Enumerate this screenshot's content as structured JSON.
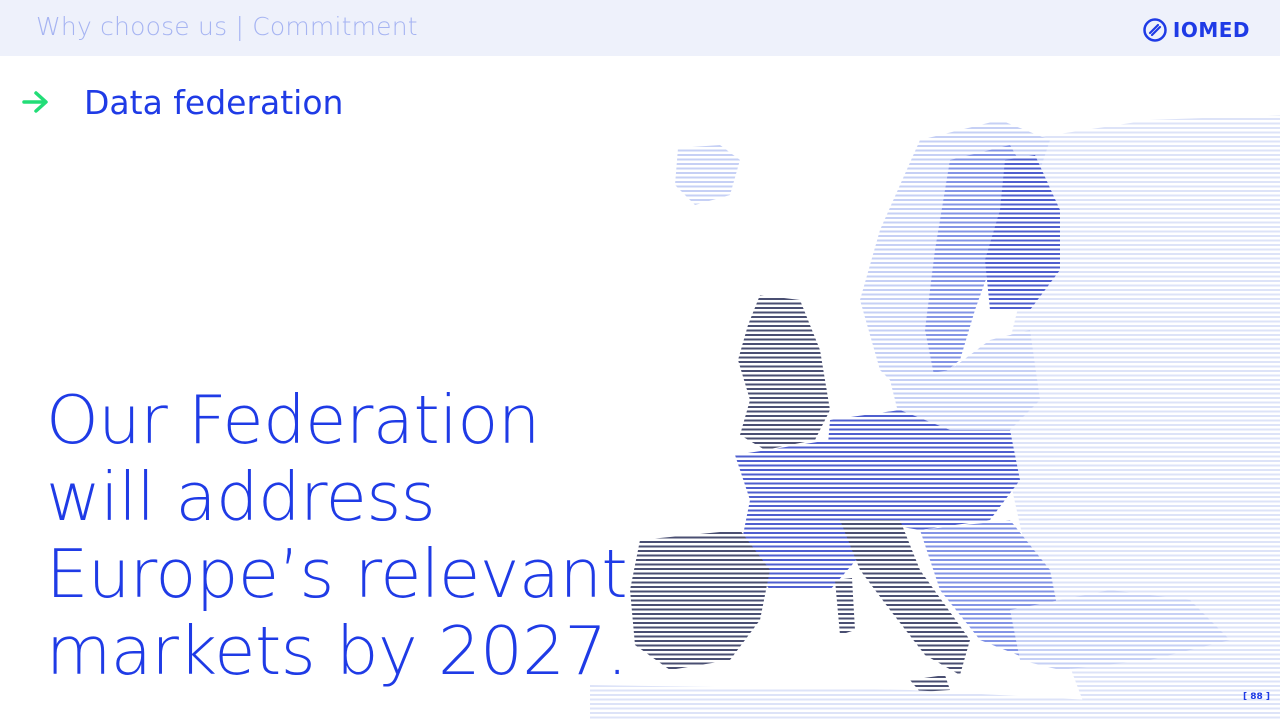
{
  "header": {
    "breadcrumb": "Why choose us | Commitment",
    "logo_text": "IOMED"
  },
  "section": {
    "title": "Data federation",
    "icon": "arrow-right-icon"
  },
  "headline": {
    "lines": [
      "Our Federation",
      "will address",
      "Europe’s relevant",
      "markets by 2027."
    ]
  },
  "footer": {
    "page_number": "[ 88 ]"
  },
  "colors": {
    "brand_blue": "#1f3be6",
    "accent_green": "#22dd77",
    "header_bg": "#eef1fb",
    "breadcrumb_text": "#a6b4f2"
  }
}
